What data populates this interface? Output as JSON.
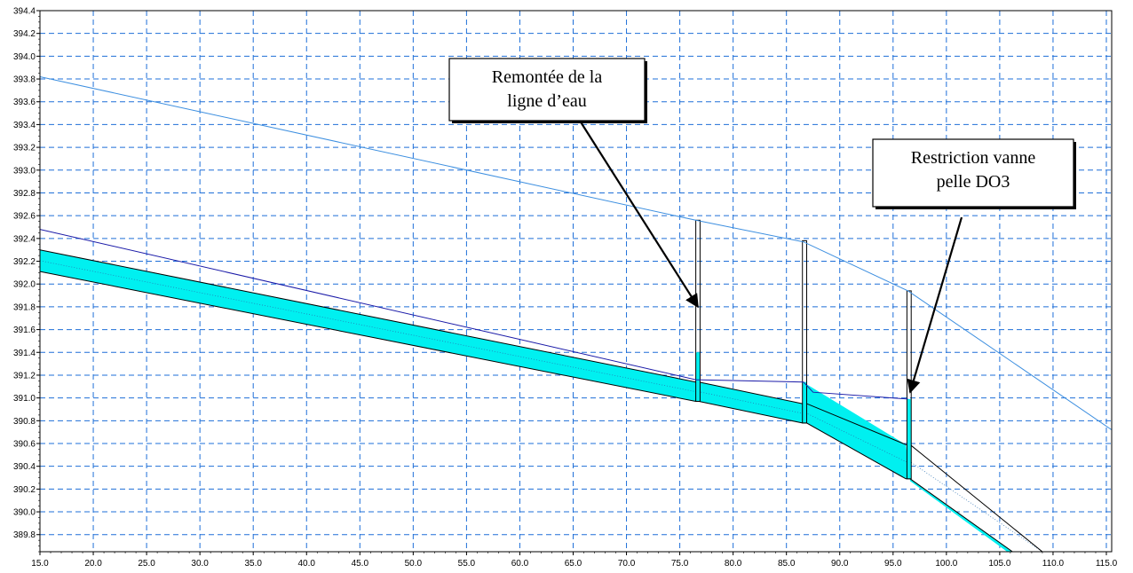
{
  "chart_data": {
    "type": "line",
    "title": "",
    "xlabel": "",
    "ylabel": "",
    "xlim": [
      15.0,
      115.5
    ],
    "ylim": [
      389.65,
      394.4
    ],
    "x_ticks": [
      15.0,
      20.0,
      25.0,
      30.0,
      35.0,
      40.0,
      45.0,
      50.0,
      55.0,
      60.0,
      65.0,
      70.0,
      75.0,
      80.0,
      85.0,
      90.0,
      95.0,
      100.0,
      105.0,
      110.0,
      115.0
    ],
    "x_tick_labels": [
      "15.0",
      "20.0",
      "25.0",
      "30.0",
      "35.0",
      "40.0",
      "45.0",
      "50.0",
      "55.0",
      "60.0",
      "65.0",
      "70.0",
      "75.0",
      "80.0",
      "85.0",
      "90.0",
      "95.0",
      "100.0",
      "105.0",
      "110.0",
      "115.0"
    ],
    "y_ticks": [
      389.8,
      390.0,
      390.2,
      390.4,
      390.6,
      390.8,
      391.0,
      391.2,
      391.4,
      391.6,
      391.8,
      392.0,
      392.2,
      392.4,
      392.6,
      392.8,
      393.0,
      393.2,
      393.4,
      393.6,
      393.8,
      394.0,
      394.2,
      394.4
    ],
    "y_tick_labels": [
      "389.8",
      "390.0",
      "390.2",
      "390.4",
      "390.6",
      "390.8",
      "391.0",
      "391.2",
      "391.4",
      "391.6",
      "391.8",
      "392.0",
      "392.2",
      "392.4",
      "392.6",
      "392.8",
      "393.0",
      "393.2",
      "393.4",
      "393.6",
      "393.8",
      "394.0",
      "394.2",
      "394.4"
    ],
    "grid": true,
    "colors": {
      "ground": "#3d8fe0",
      "water_line": "#1a1aa8",
      "water_fill": "#00f0f0",
      "pipe_outline": "#000000",
      "grid": "#1e6fd8",
      "arrow": "#000000"
    },
    "series": [
      {
        "name": "",
        "role": "ground",
        "x": [
          15.0,
          76.5,
          86.6,
          96.4,
          115.5
        ],
        "y": [
          393.82,
          392.56,
          392.37,
          391.94,
          390.72
        ]
      },
      {
        "name": "",
        "role": "water_line",
        "x": [
          15.0,
          76.5,
          86.6,
          87.5,
          96.4
        ],
        "y": [
          392.48,
          391.16,
          391.14,
          391.05,
          390.99
        ]
      },
      {
        "name": "",
        "role": "pipe_crown",
        "x": [
          15.0,
          76.5,
          76.8,
          86.5,
          86.9,
          96.2,
          96.6,
          109.0
        ],
        "y": [
          392.3,
          391.14,
          391.14,
          390.95,
          390.95,
          390.59,
          390.59,
          389.65
        ]
      },
      {
        "name": "",
        "role": "pipe_invert",
        "x": [
          15.0,
          76.5,
          76.8,
          86.5,
          86.9,
          96.2,
          96.6,
          106.2
        ],
        "y": [
          392.11,
          390.97,
          390.97,
          390.78,
          390.78,
          390.29,
          390.29,
          389.65
        ]
      },
      {
        "name": "",
        "role": "water_surface_in_pipe",
        "x": [
          15.0,
          76.5,
          76.8,
          86.5,
          86.9,
          96.2,
          96.6,
          105.7
        ],
        "y": [
          392.3,
          391.14,
          391.14,
          390.95,
          391.12,
          390.59,
          390.27,
          389.65
        ]
      }
    ],
    "manholes": [
      {
        "x0": 76.5,
        "x1": 76.9,
        "invert": 390.97,
        "water": 391.4,
        "top": 392.56
      },
      {
        "x0": 86.5,
        "x1": 86.9,
        "invert": 390.78,
        "water": 391.14,
        "top": 392.38
      },
      {
        "x0": 96.3,
        "x1": 96.7,
        "invert": 390.29,
        "water": 390.99,
        "top": 391.94
      }
    ],
    "annotations": [
      {
        "lines": [
          "Remontée de la",
          "ligne d’eau"
        ],
        "arrow_to": [
          76.7,
          391.8
        ]
      },
      {
        "lines": [
          "Restriction vanne",
          "pelle DO3"
        ],
        "arrow_to": [
          96.6,
          391.05
        ]
      }
    ]
  }
}
